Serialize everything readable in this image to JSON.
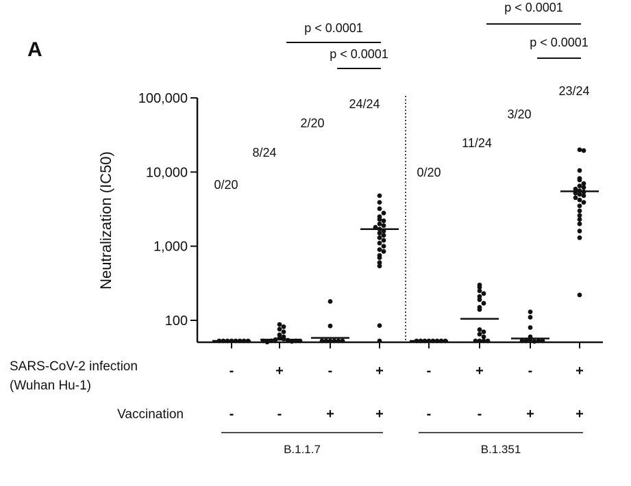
{
  "panel_label": "A",
  "chart_data": {
    "type": "scatter",
    "scale": "log",
    "ylabel": "Neutralization (IC50)",
    "ylim": [
      50,
      100000
    ],
    "yticks": [
      {
        "value": 100,
        "label": "100"
      },
      {
        "value": 1000,
        "label": "1,000"
      },
      {
        "value": 10000,
        "label": "10,000"
      },
      {
        "value": 100000,
        "label": "100,000"
      }
    ],
    "row_labels": {
      "infection": [
        "SARS-CoV-2 infection",
        "(Wuhan Hu-1)"
      ],
      "vaccination": "Vaccination"
    },
    "variants": [
      {
        "name": "B.1.1.7",
        "groups": [
          0,
          1,
          2,
          3
        ]
      },
      {
        "name": "B.1.351",
        "groups": [
          4,
          5,
          6,
          7
        ]
      }
    ],
    "groups": [
      {
        "infection": "-",
        "vaccination": "-",
        "responders": "0/20",
        "median": 50,
        "points": [
          50,
          50,
          50,
          50,
          50,
          50,
          50,
          50
        ]
      },
      {
        "infection": "+",
        "vaccination": "-",
        "responders": "8/24",
        "median": 55,
        "points": [
          88,
          82,
          76,
          70,
          64,
          60,
          58,
          56,
          55,
          54,
          53,
          52,
          51,
          50,
          50,
          50
        ]
      },
      {
        "infection": "-",
        "vaccination": "+",
        "responders": "2/20",
        "median": 58,
        "points": [
          180,
          84,
          50,
          50,
          50,
          50,
          50,
          50
        ]
      },
      {
        "infection": "+",
        "vaccination": "+",
        "responders": "24/24",
        "median": 1700,
        "points": [
          4800,
          3900,
          3200,
          2800,
          2500,
          2300,
          2200,
          2000,
          1900,
          1800,
          1700,
          1600,
          1500,
          1400,
          1300,
          1200,
          1100,
          1000,
          900,
          850,
          750,
          700,
          600,
          540,
          85,
          50
        ]
      },
      {
        "infection": "-",
        "vaccination": "-",
        "responders": "0/20",
        "median": 50,
        "points": [
          50,
          50,
          50,
          50,
          50,
          50,
          50,
          50
        ]
      },
      {
        "infection": "+",
        "vaccination": "-",
        "responders": "11/24",
        "median": 105,
        "points": [
          300,
          280,
          250,
          230,
          210,
          190,
          170,
          150,
          140,
          75,
          70,
          65,
          60,
          50,
          50,
          50,
          50
        ]
      },
      {
        "infection": "-",
        "vaccination": "+",
        "responders": "3/20",
        "median": 57,
        "points": [
          130,
          110,
          80,
          60,
          55,
          52,
          50,
          50,
          50,
          50
        ]
      },
      {
        "infection": "+",
        "vaccination": "+",
        "responders": "23/24",
        "median": 5500,
        "points": [
          20000,
          19500,
          10500,
          8200,
          7800,
          7000,
          6500,
          6200,
          5900,
          5600,
          5400,
          5200,
          5000,
          4800,
          4500,
          4200,
          3900,
          3500,
          3000,
          2600,
          2300,
          2000,
          1600,
          1300,
          220
        ]
      }
    ],
    "comparisons": [
      {
        "from": 1,
        "to": 3,
        "label": "p < 0.0001"
      },
      {
        "from": 2,
        "to": 3,
        "label": "p < 0.0001"
      },
      {
        "from": 5,
        "to": 7,
        "label": "p < 0.0001"
      },
      {
        "from": 6,
        "to": 7,
        "label": "p < 0.0001"
      }
    ]
  }
}
